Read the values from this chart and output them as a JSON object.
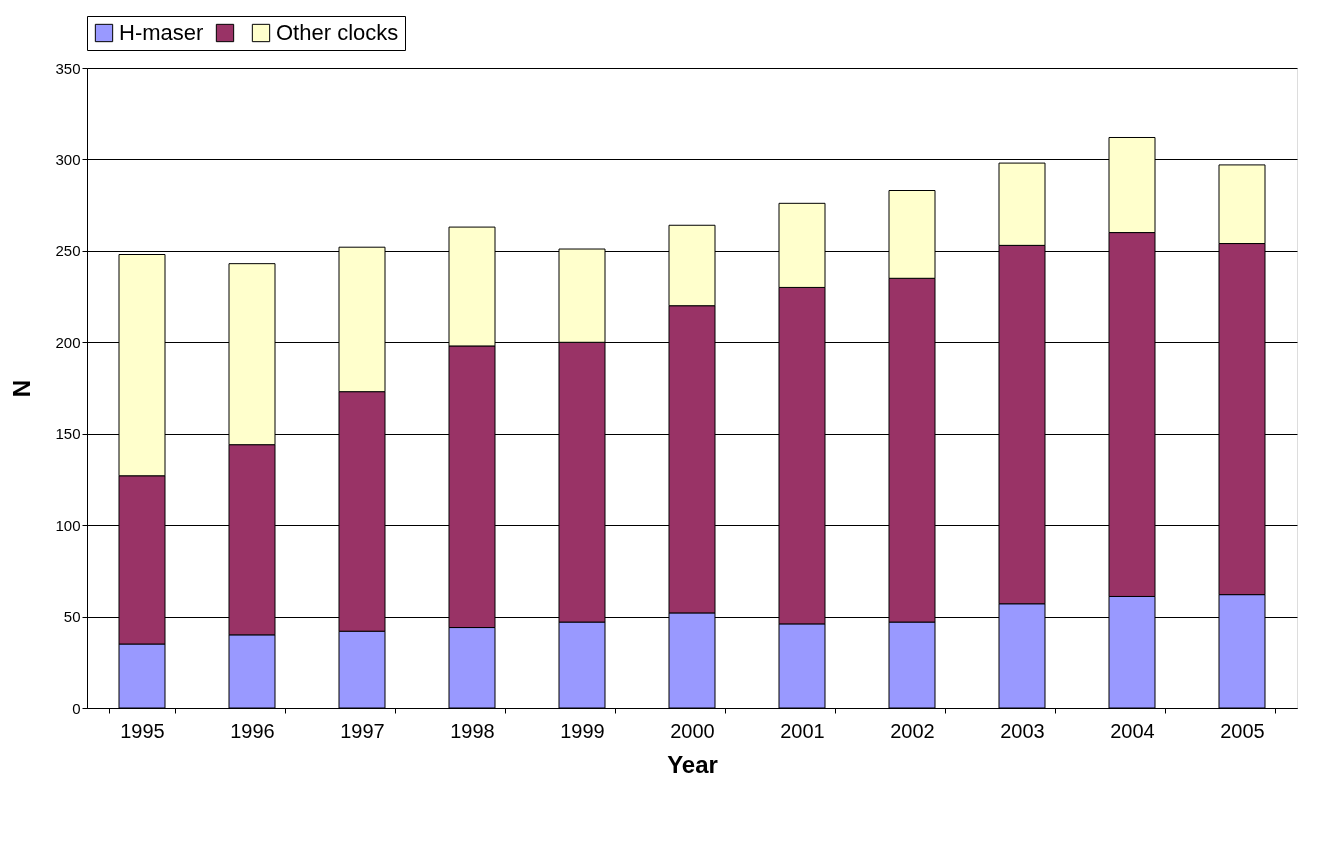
{
  "chart_data": {
    "type": "bar",
    "stacked": true,
    "xlabel": "Year",
    "ylabel": "N",
    "categories": [
      "1995",
      "1996",
      "1997",
      "1998",
      "1999",
      "2000",
      "2001",
      "2002",
      "2003",
      "2004",
      "2005"
    ],
    "series": [
      {
        "name": "H-maser",
        "color": "#9999ff",
        "values": [
          35,
          40,
          42,
          44,
          47,
          52,
          46,
          47,
          57,
          61,
          62
        ]
      },
      {
        "color": "#993366",
        "values": [
          92,
          104,
          131,
          154,
          153,
          168,
          184,
          188,
          196,
          199,
          192
        ]
      },
      {
        "name": "Other clocks",
        "color": "#ffffcc",
        "values": [
          121,
          99,
          79,
          65,
          51,
          44,
          46,
          48,
          45,
          52,
          43
        ]
      }
    ],
    "ylim": [
      0,
      350
    ],
    "yticks": [
      0,
      50,
      100,
      150,
      200,
      250,
      300,
      350
    ],
    "grid": "y",
    "legend": "top"
  }
}
